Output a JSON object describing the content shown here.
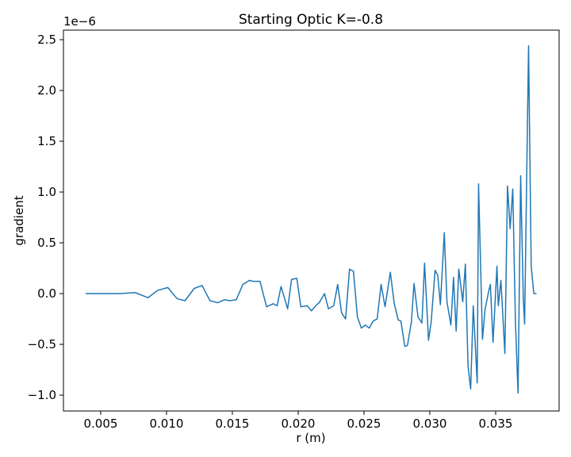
{
  "chart_data": {
    "type": "line",
    "title": "Starting Optic K=-0.8",
    "x_label": "r (m)",
    "y_label": "gradient",
    "y_offset_label": "1e−6",
    "xlim": [
      0.00217,
      0.03982
    ],
    "ylim": [
      -1.156,
      2.594
    ],
    "xticks": [
      0.005,
      {
        "value": 0.01,
        "label": "0.010"
      },
      0.015,
      {
        "value": 0.02,
        "label": "0.020"
      },
      0.025,
      {
        "value": 0.03,
        "label": "0.030"
      },
      0.035
    ],
    "yticks": [
      {
        "value": -1,
        "label": "−1.0"
      },
      {
        "value": -0.5,
        "label": "−0.5"
      },
      {
        "value": 0,
        "label": "0.0"
      },
      0.5,
      {
        "value": 1,
        "label": "1.0"
      },
      1.5,
      {
        "value": 2,
        "label": "2.0"
      },
      2.5
    ],
    "grid": false,
    "series": [
      {
        "color": "#1f77b4",
        "x": [
          0.00386,
          0.00578,
          0.0065,
          0.0076,
          0.0086,
          0.0093,
          0.0101,
          0.0108,
          0.0114,
          0.0121,
          0.0127,
          0.0133,
          0.0139,
          0.0144,
          0.0148,
          0.0153,
          0.0158,
          0.0163,
          0.0166,
          0.0171,
          0.0176,
          0.0181,
          0.0184,
          0.0187,
          0.0192,
          0.0195,
          0.0199,
          0.0202,
          0.0207,
          0.021,
          0.0214,
          0.0216,
          0.022,
          0.0223,
          0.0227,
          0.023,
          0.0233,
          0.0236,
          0.0239,
          0.0242,
          0.0245,
          0.0248,
          0.0251,
          0.0254,
          0.0257,
          0.026,
          0.0263,
          0.0266,
          0.027,
          0.0273,
          0.0276,
          0.0278,
          0.0281,
          0.0283,
          0.0286,
          0.0288,
          0.0291,
          0.0294,
          0.0296,
          0.0299,
          0.0301,
          0.0304,
          0.0306,
          0.0308,
          0.0311,
          0.0313,
          0.0316,
          0.0318,
          0.032,
          0.0322,
          0.0325,
          0.0327,
          0.0329,
          0.0331,
          0.0333,
          0.0336,
          0.0337,
          0.034,
          0.0342,
          0.0345,
          0.0346,
          0.0348,
          0.0351,
          0.0352,
          0.0354,
          0.0357,
          0.0359,
          0.0361,
          0.0363,
          0.0365,
          0.0367,
          0.0369,
          0.0371,
          0.0372,
          0.0375,
          0.0377,
          0.0379,
          0.0381
        ],
        "values": [
          0,
          0,
          0,
          0.01,
          -0.04,
          0.03,
          0.06,
          -0.05,
          -0.07,
          0.05,
          0.08,
          -0.07,
          -0.09,
          -0.06,
          -0.07,
          -0.06,
          0.09,
          0.13,
          0.12,
          0.12,
          -0.13,
          -0.1,
          -0.12,
          0.07,
          -0.15,
          0.14,
          0.15,
          -0.13,
          -0.12,
          -0.17,
          -0.11,
          -0.09,
          0,
          -0.15,
          -0.12,
          0.09,
          -0.19,
          -0.25,
          0.24,
          0.22,
          -0.23,
          -0.34,
          -0.31,
          -0.34,
          -0.27,
          -0.25,
          0.09,
          -0.13,
          0.21,
          -0.1,
          -0.26,
          -0.27,
          -0.52,
          -0.51,
          -0.28,
          0.1,
          -0.23,
          -0.29,
          0.3,
          -0.46,
          -0.28,
          0.23,
          0.18,
          -0.11,
          0.6,
          -0.08,
          -0.31,
          0.16,
          -0.37,
          0.24,
          -0.08,
          0.29,
          -0.71,
          -0.94,
          -0.12,
          -0.88,
          1.08,
          -0.45,
          -0.15,
          0.04,
          0.09,
          -0.48,
          0.27,
          -0.12,
          0.13,
          -0.59,
          1.06,
          0.64,
          1.03,
          -0.27,
          -0.98,
          1.16,
          -0.05,
          -0.3,
          2.44,
          0.27,
          0,
          0
        ]
      }
    ]
  }
}
